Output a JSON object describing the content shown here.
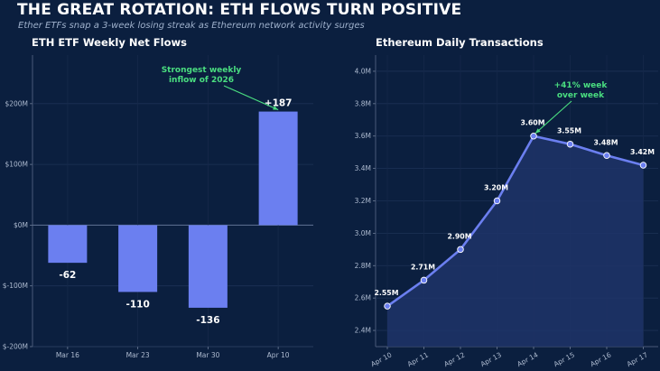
{
  "header": {
    "title": "THE GREAT ROTATION: ETH FLOWS TURN POSITIVE",
    "subtitle": "Ether ETFs snap a 3-week losing streak as Ethereum network activity surges"
  },
  "colors": {
    "background": "#0b1f3f",
    "bar": "#6b7ff0",
    "line": "#6b7ff0",
    "annotation": "#4ade80",
    "area": "#1f3468"
  },
  "chart_data": [
    {
      "type": "bar",
      "title": "ETH ETF Weekly Net Flows",
      "categories": [
        "Mar 16",
        "Mar 23",
        "Mar 30",
        "Apr 10"
      ],
      "values": [
        -62,
        -110,
        -136,
        187
      ],
      "value_labels": [
        "-62",
        "-110",
        "-136",
        "+187"
      ],
      "unit": "$M",
      "ylim": [
        -200,
        280
      ],
      "yticks": [
        -200,
        -100,
        0,
        100,
        200
      ],
      "ytick_labels": [
        "$-200M",
        "$-100M",
        "$0M",
        "$100M",
        "$200M"
      ],
      "grid": true,
      "annotation": {
        "text": [
          "Strongest weekly",
          "inflow of 2026"
        ],
        "target_category": "Apr 10",
        "target_value": 187
      }
    },
    {
      "type": "line",
      "title": "Ethereum Daily Transactions",
      "x": [
        "Apr 10",
        "Apr 11",
        "Apr 12",
        "Apr 13",
        "Apr 14",
        "Apr 15",
        "Apr 16",
        "Apr 17"
      ],
      "values": [
        2.55,
        2.71,
        2.9,
        3.2,
        3.6,
        3.55,
        3.48,
        3.42
      ],
      "value_labels": [
        "2.55M",
        "2.71M",
        "2.90M",
        "3.20M",
        "3.60M",
        "3.55M",
        "3.48M",
        "3.42M"
      ],
      "unit": "M",
      "ylim": [
        2.3,
        4.1
      ],
      "yticks": [
        2.4,
        2.6,
        2.8,
        3.0,
        3.2,
        3.4,
        3.6,
        3.8,
        4.0
      ],
      "ytick_labels": [
        "2.4M",
        "2.6M",
        "2.8M",
        "3.0M",
        "3.2M",
        "3.4M",
        "3.6M",
        "3.8M",
        "4.0M"
      ],
      "grid": true,
      "annotation": {
        "text": [
          "+41% week",
          "over week"
        ],
        "target_x": "Apr 14",
        "target_value": 3.6
      }
    }
  ]
}
